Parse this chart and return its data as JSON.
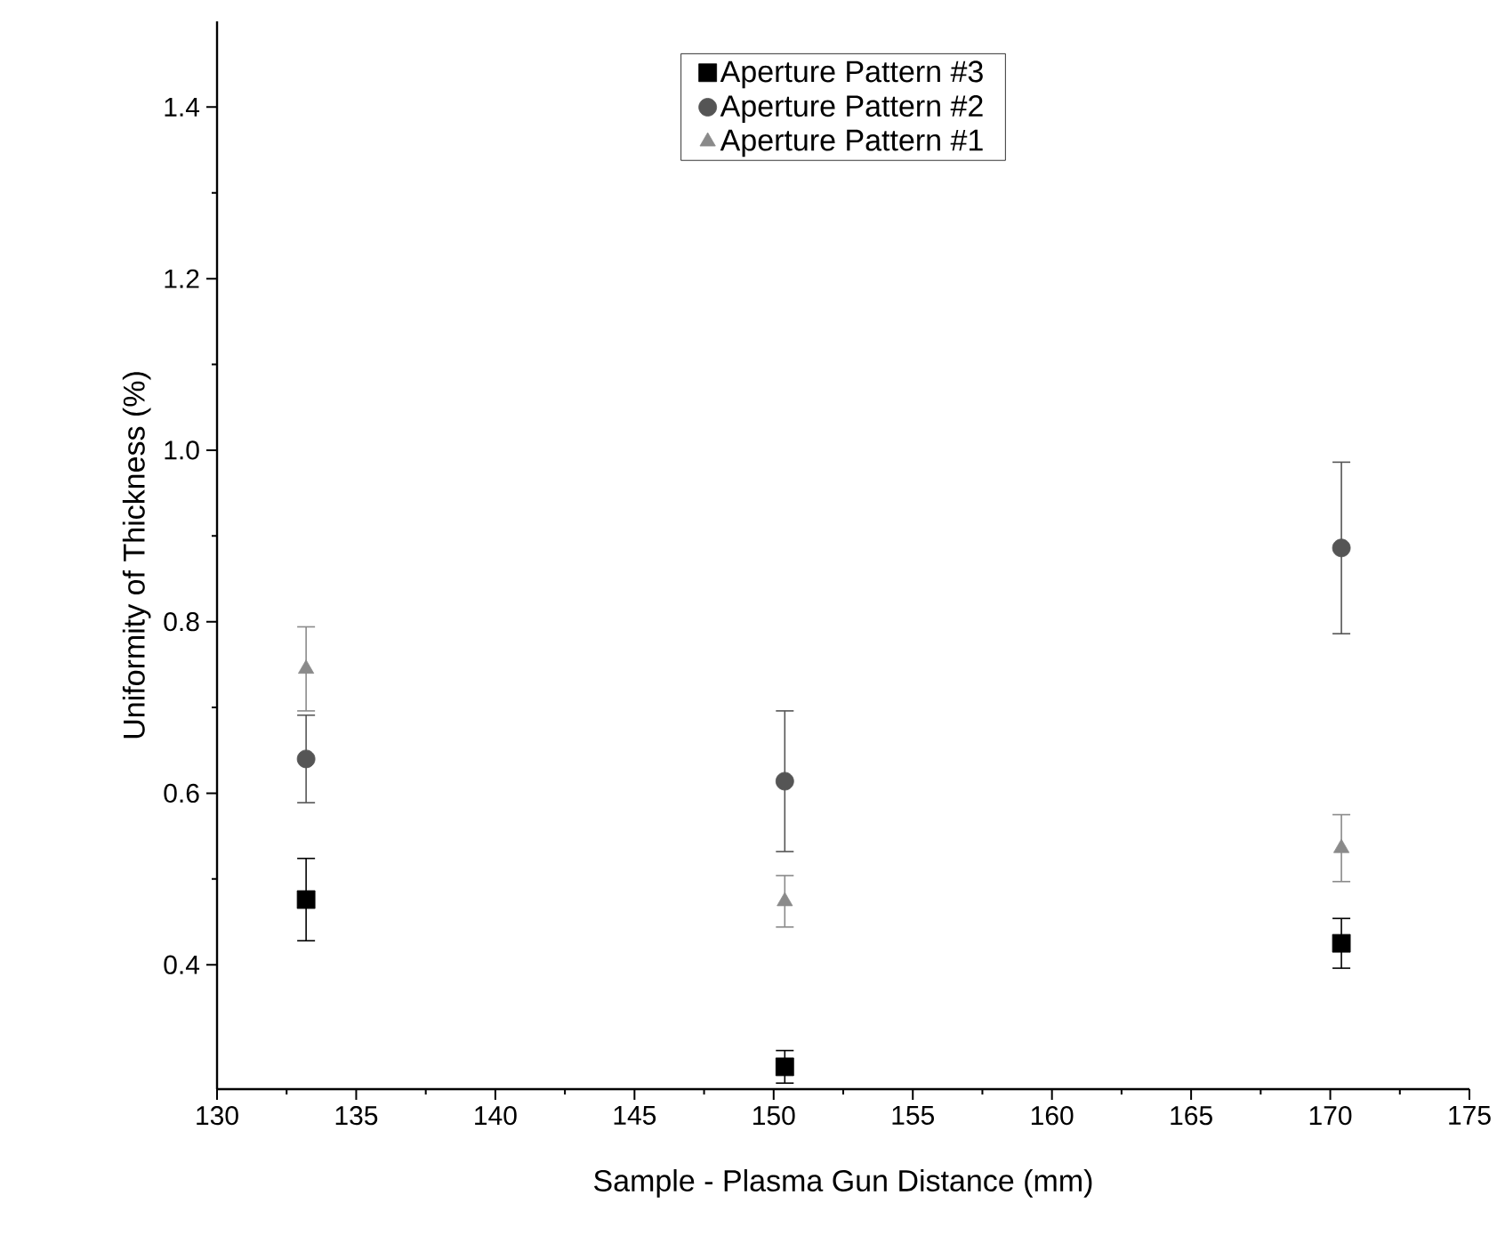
{
  "chart_data": {
    "type": "scatter",
    "xlabel": "Sample - Plasma Gun Distance (mm)",
    "ylabel": "Uniformity of Thickness (%)",
    "x": [
      133.2,
      150.4,
      170.4
    ],
    "series": [
      {
        "name": "Aperture Pattern #3",
        "color": "#000000",
        "marker": "square",
        "values": [
          0.476,
          0.281,
          0.425
        ],
        "errors": [
          0.048,
          0.019,
          0.029
        ]
      },
      {
        "name": "Aperture Pattern #2",
        "color": "#555555",
        "marker": "circle",
        "values": [
          0.64,
          0.614,
          0.886
        ],
        "errors": [
          0.051,
          0.082,
          0.1
        ]
      },
      {
        "name": "Aperture Pattern #1",
        "color": "#8a8a8a",
        "marker": "triangle",
        "values": [
          0.745,
          0.474,
          0.536
        ],
        "errors": [
          0.049,
          0.03,
          0.039
        ]
      }
    ],
    "xlim": [
      130,
      175
    ],
    "xticks": [
      130,
      135,
      140,
      145,
      150,
      155,
      160,
      165,
      170,
      175
    ],
    "ylim": [
      0.255,
      1.5
    ],
    "yticks": [
      0.4,
      0.6,
      {
        "value": 0.8,
        "label": "0.8"
      },
      {
        "value": 1.0,
        "label": "1.0"
      },
      1.2,
      1.4
    ],
    "legend": "top",
    "grid": false
  }
}
